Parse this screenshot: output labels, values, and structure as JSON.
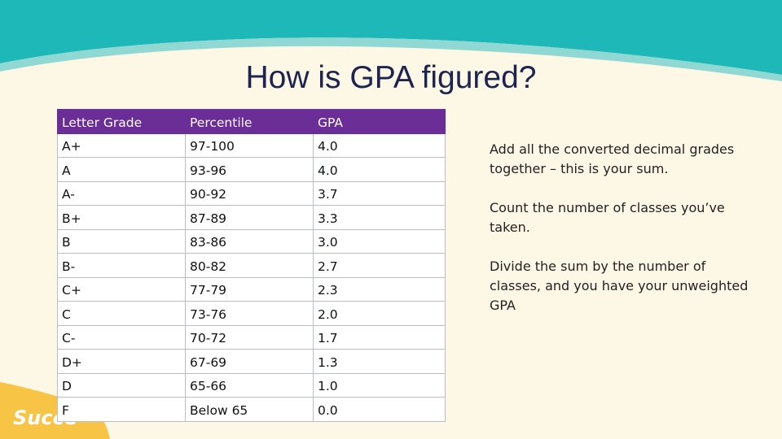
{
  "title": "How is GPA figured?",
  "logo": "Succe",
  "table": {
    "header": [
      "Letter Grade",
      "Percentile",
      "GPA"
    ],
    "rows": [
      [
        "A+",
        "97-100",
        "4.0"
      ],
      [
        "A",
        "93-96",
        "4.0"
      ],
      [
        "A-",
        "90-92",
        "3.7"
      ],
      [
        "B+",
        "87-89",
        "3.3"
      ],
      [
        "B",
        "83-86",
        "3.0"
      ],
      [
        "B-",
        "80-82",
        "2.7"
      ],
      [
        "C+",
        "77-79",
        "2.3"
      ],
      [
        "C",
        "73-76",
        "2.0"
      ],
      [
        "C-",
        "70-72",
        "1.7"
      ],
      [
        "D+",
        "67-69",
        "1.3"
      ],
      [
        "D",
        "65-66",
        "1.0"
      ],
      [
        "F",
        "Below 65",
        "0.0"
      ]
    ]
  },
  "steps": [
    "Add all the converted decimal grades together – this is your sum.",
    "Count the number of classes you’ve taken.",
    "Divide the sum by the number of classes, and you have your unweighted GPA"
  ]
}
